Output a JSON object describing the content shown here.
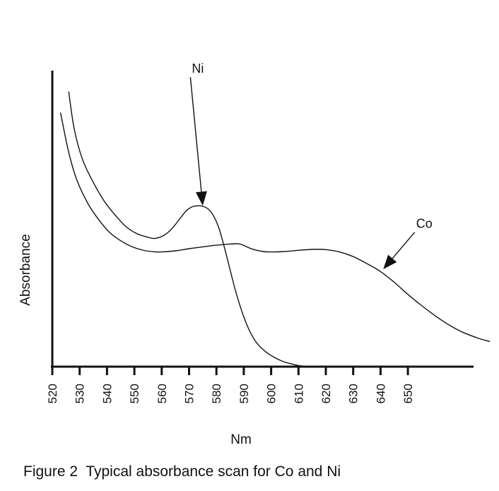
{
  "chart_data": {
    "type": "line",
    "caption": "Figure 2  Typical absorbance scan for Co and Ni",
    "xlabel": "Nm",
    "ylabel": "Absorbance",
    "xlim": [
      520,
      673
    ],
    "ylim": [
      0,
      1
    ],
    "x_ticks": [
      520,
      530,
      540,
      550,
      560,
      570,
      580,
      590,
      600,
      610,
      620,
      630,
      640,
      650
    ],
    "y_ticks": [],
    "grid": false,
    "series": [
      {
        "name": "Ni",
        "points": [
          [
            526,
            1.18
          ],
          [
            528,
            1.02
          ],
          [
            531,
            0.89
          ],
          [
            535,
            0.79
          ],
          [
            539,
            0.71
          ],
          [
            543,
            0.65
          ],
          [
            547,
            0.6
          ],
          [
            551,
            0.57
          ],
          [
            555,
            0.555
          ],
          [
            557,
            0.55
          ],
          [
            559,
            0.554
          ],
          [
            561,
            0.565
          ],
          [
            563,
            0.583
          ],
          [
            565,
            0.61
          ],
          [
            567,
            0.64
          ],
          [
            569,
            0.669
          ],
          [
            571,
            0.685
          ],
          [
            573,
            0.69
          ],
          [
            575,
            0.688
          ],
          [
            577,
            0.676
          ],
          [
            579,
            0.646
          ],
          [
            581,
            0.591
          ],
          [
            583,
            0.508
          ],
          [
            585,
            0.415
          ],
          [
            587,
            0.325
          ],
          [
            589,
            0.248
          ],
          [
            591,
            0.183
          ],
          [
            593,
            0.134
          ],
          [
            595,
            0.098
          ],
          [
            598,
            0.064
          ],
          [
            601,
            0.041
          ],
          [
            604,
            0.024
          ],
          [
            607,
            0.013
          ],
          [
            610,
            0.005
          ],
          [
            613,
            0.001
          ],
          [
            617,
            0.0
          ]
        ],
        "label_text": "Ni",
        "annotation": {
          "label_at": [
            571,
            1.26
          ],
          "arrow_to": [
            575,
            0.69
          ]
        }
      },
      {
        "name": "Co",
        "points": [
          [
            523,
            1.09
          ],
          [
            526,
            0.92
          ],
          [
            529,
            0.8
          ],
          [
            533,
            0.7
          ],
          [
            537,
            0.63
          ],
          [
            541,
            0.575
          ],
          [
            545,
            0.54
          ],
          [
            549,
            0.515
          ],
          [
            553,
            0.5
          ],
          [
            557,
            0.493
          ],
          [
            560,
            0.492
          ],
          [
            565,
            0.497
          ],
          [
            570,
            0.506
          ],
          [
            575,
            0.514
          ],
          [
            580,
            0.521
          ],
          [
            585,
            0.526
          ],
          [
            588,
            0.527
          ],
          [
            590,
            0.52
          ],
          [
            593,
            0.505
          ],
          [
            597,
            0.494
          ],
          [
            600,
            0.492
          ],
          [
            605,
            0.494
          ],
          [
            610,
            0.499
          ],
          [
            615,
            0.503
          ],
          [
            620,
            0.502
          ],
          [
            625,
            0.492
          ],
          [
            630,
            0.472
          ],
          [
            635,
            0.442
          ],
          [
            640,
            0.408
          ],
          [
            645,
            0.362
          ],
          [
            650,
            0.31
          ],
          [
            655,
            0.262
          ],
          [
            660,
            0.218
          ],
          [
            665,
            0.179
          ],
          [
            670,
            0.148
          ],
          [
            676,
            0.121
          ],
          [
            680,
            0.108
          ]
        ],
        "label_text": "Co",
        "annotation": {
          "label_at": [
            653,
            0.595
          ],
          "arrow_to": [
            641,
            0.418
          ]
        }
      }
    ]
  }
}
